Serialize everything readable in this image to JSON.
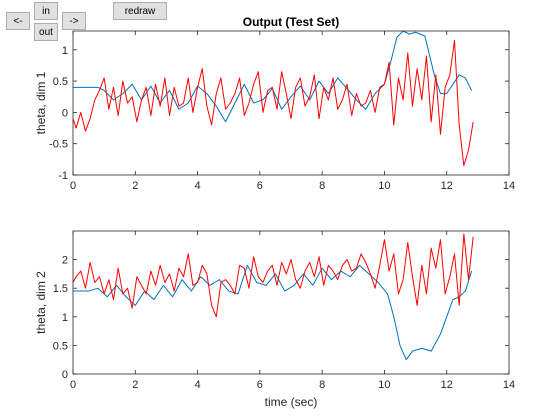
{
  "toolbar": {
    "left_label": "<-",
    "in_label": "in",
    "out_label": "out",
    "right_label": "->",
    "redraw_label": "redraw"
  },
  "colors": {
    "predicted": "#0072BD",
    "actual": "#FF0000",
    "axis": "#262626"
  },
  "chart_data": [
    {
      "type": "line",
      "title": "Output (Test Set)",
      "xlabel": "",
      "ylabel": "theta, dim 1",
      "xlim": [
        0,
        14
      ],
      "ylim": [
        -1,
        1.3
      ],
      "xticks": [
        0,
        2,
        4,
        6,
        8,
        10,
        12,
        14
      ],
      "yticks": [
        -1,
        -0.5,
        0,
        0.5,
        1
      ],
      "grid": false,
      "series": [
        {
          "color": "#0072BD",
          "x": [
            0,
            0.4,
            0.8,
            1.0,
            1.3,
            1.6,
            1.9,
            2.2,
            2.5,
            2.8,
            3.1,
            3.4,
            3.7,
            4.0,
            4.3,
            4.6,
            4.9,
            5.2,
            5.5,
            5.8,
            6.1,
            6.4,
            6.7,
            7.0,
            7.3,
            7.6,
            7.9,
            8.2,
            8.5,
            8.8,
            9.1,
            9.4,
            9.7,
            10.0,
            10.2,
            10.4,
            10.6,
            10.8,
            11.0,
            11.3,
            11.6,
            11.8,
            12.0,
            12.2,
            12.4,
            12.6,
            12.8
          ],
          "y": [
            0.4,
            0.4,
            0.4,
            0.35,
            0.2,
            0.3,
            0.45,
            0.2,
            0.42,
            0.15,
            0.35,
            0.05,
            0.15,
            0.42,
            0.3,
            0.1,
            -0.15,
            0.15,
            0.45,
            0.15,
            0.2,
            0.38,
            0.05,
            0.25,
            0.42,
            0.2,
            0.5,
            0.3,
            0.55,
            0.38,
            0.2,
            0.05,
            0.3,
            0.45,
            0.8,
            1.2,
            1.3,
            1.25,
            1.28,
            1.22,
            0.6,
            0.3,
            0.3,
            0.45,
            0.6,
            0.55,
            0.35
          ]
        },
        {
          "color": "#FF0000",
          "x": [
            0,
            0.1,
            0.25,
            0.4,
            0.55,
            0.7,
            0.85,
            1.0,
            1.15,
            1.3,
            1.45,
            1.6,
            1.75,
            1.9,
            2.05,
            2.2,
            2.35,
            2.5,
            2.65,
            2.8,
            2.95,
            3.1,
            3.25,
            3.4,
            3.55,
            3.7,
            3.85,
            4.0,
            4.15,
            4.3,
            4.45,
            4.6,
            4.75,
            4.9,
            5.05,
            5.2,
            5.35,
            5.5,
            5.65,
            5.8,
            5.95,
            6.1,
            6.25,
            6.4,
            6.55,
            6.7,
            6.85,
            7.0,
            7.15,
            7.3,
            7.45,
            7.6,
            7.75,
            7.9,
            8.05,
            8.2,
            8.35,
            8.5,
            8.65,
            8.8,
            8.95,
            9.1,
            9.25,
            9.4,
            9.55,
            9.7,
            9.85,
            10.0,
            10.15,
            10.3,
            10.45,
            10.6,
            10.75,
            10.9,
            11.05,
            11.2,
            11.35,
            11.5,
            11.65,
            11.8,
            11.95,
            12.1,
            12.25,
            12.4,
            12.55,
            12.7,
            12.85
          ],
          "y": [
            -0.1,
            -0.25,
            0.0,
            -0.3,
            -0.1,
            0.2,
            0.35,
            0.55,
            0.05,
            0.4,
            -0.05,
            0.5,
            0.15,
            0.25,
            -0.15,
            0.2,
            0.4,
            -0.05,
            0.45,
            0.1,
            0.55,
            -0.05,
            0.4,
            0.1,
            0.15,
            0.55,
            0.0,
            0.4,
            0.7,
            0.1,
            -0.2,
            0.3,
            0.55,
            0.05,
            0.15,
            0.3,
            0.55,
            -0.05,
            0.15,
            0.45,
            0.65,
            0.0,
            0.35,
            0.4,
            0.05,
            0.65,
            0.3,
            -0.1,
            0.4,
            0.55,
            0.1,
            0.25,
            0.6,
            -0.1,
            0.4,
            0.2,
            0.55,
            0.05,
            0.2,
            0.45,
            -0.05,
            0.3,
            0.1,
            0.15,
            0.35,
            0.0,
            0.4,
            0.45,
            0.8,
            -0.2,
            0.55,
            0.2,
            0.95,
            0.1,
            0.7,
            0.2,
            0.9,
            -0.15,
            0.6,
            -0.35,
            0.4,
            0.6,
            1.15,
            -0.2,
            -0.85,
            -0.6,
            -0.15
          ]
        }
      ]
    },
    {
      "type": "line",
      "title": "",
      "xlabel": "time (sec)",
      "ylabel": "theta, dim 2",
      "xlim": [
        0,
        14
      ],
      "ylim": [
        0,
        2.5
      ],
      "xticks": [
        0,
        2,
        4,
        6,
        8,
        10,
        12,
        14
      ],
      "yticks": [
        0,
        0.5,
        1,
        1.5,
        2
      ],
      "grid": false,
      "series": [
        {
          "color": "#0072BD",
          "x": [
            0,
            0.5,
            0.8,
            1.1,
            1.4,
            1.7,
            2.0,
            2.3,
            2.6,
            2.9,
            3.2,
            3.5,
            3.8,
            4.1,
            4.4,
            4.7,
            5.0,
            5.3,
            5.6,
            5.9,
            6.2,
            6.5,
            6.8,
            7.1,
            7.4,
            7.7,
            8.0,
            8.3,
            8.6,
            8.9,
            9.2,
            9.5,
            9.8,
            10.1,
            10.3,
            10.5,
            10.7,
            10.9,
            11.2,
            11.5,
            11.8,
            12.0,
            12.2,
            12.4,
            12.6,
            12.8
          ],
          "y": [
            1.45,
            1.45,
            1.5,
            1.35,
            1.55,
            1.35,
            1.2,
            1.45,
            1.3,
            1.55,
            1.35,
            1.65,
            1.45,
            1.7,
            1.55,
            1.65,
            1.45,
            1.4,
            1.9,
            1.6,
            1.55,
            1.75,
            1.45,
            1.55,
            1.75,
            1.55,
            1.85,
            1.65,
            1.8,
            1.7,
            1.9,
            1.75,
            1.6,
            1.4,
            1.0,
            0.5,
            0.25,
            0.4,
            0.45,
            0.4,
            0.7,
            1.0,
            1.3,
            1.35,
            1.45,
            1.8
          ]
        },
        {
          "color": "#FF0000",
          "x": [
            0,
            0.1,
            0.25,
            0.4,
            0.55,
            0.7,
            0.85,
            1.0,
            1.15,
            1.3,
            1.45,
            1.6,
            1.75,
            1.9,
            2.05,
            2.2,
            2.35,
            2.5,
            2.65,
            2.8,
            2.95,
            3.1,
            3.25,
            3.4,
            3.55,
            3.7,
            3.85,
            4.0,
            4.15,
            4.3,
            4.45,
            4.6,
            4.75,
            4.9,
            5.05,
            5.2,
            5.35,
            5.5,
            5.65,
            5.8,
            5.95,
            6.1,
            6.25,
            6.4,
            6.55,
            6.7,
            6.85,
            7.0,
            7.15,
            7.3,
            7.45,
            7.6,
            7.75,
            7.9,
            8.05,
            8.2,
            8.35,
            8.5,
            8.65,
            8.8,
            8.95,
            9.1,
            9.25,
            9.4,
            9.55,
            9.7,
            9.85,
            10.0,
            10.15,
            10.3,
            10.45,
            10.6,
            10.75,
            10.9,
            11.05,
            11.2,
            11.35,
            11.5,
            11.65,
            11.8,
            11.95,
            12.1,
            12.25,
            12.4,
            12.55,
            12.7,
            12.85
          ],
          "y": [
            1.6,
            1.7,
            1.8,
            1.5,
            1.95,
            1.6,
            1.7,
            1.4,
            1.65,
            1.3,
            1.85,
            1.4,
            1.5,
            1.15,
            1.7,
            1.55,
            1.4,
            1.8,
            1.55,
            1.9,
            1.6,
            1.75,
            1.45,
            1.85,
            1.7,
            2.1,
            1.55,
            1.6,
            1.9,
            1.75,
            1.2,
            1.0,
            1.6,
            1.65,
            1.55,
            1.4,
            1.9,
            1.85,
            1.5,
            2.05,
            1.7,
            1.6,
            1.8,
            1.9,
            1.55,
            1.95,
            1.75,
            2.0,
            1.65,
            1.5,
            1.8,
            1.95,
            1.7,
            2.05,
            1.55,
            1.9,
            1.8,
            1.65,
            1.9,
            2.0,
            1.8,
            1.85,
            2.1,
            1.95,
            1.75,
            1.5,
            1.9,
            2.35,
            1.8,
            2.1,
            1.4,
            1.65,
            2.3,
            1.7,
            1.2,
            1.9,
            1.4,
            2.2,
            1.85,
            2.35,
            1.4,
            1.7,
            2.1,
            1.2,
            2.45,
            1.65,
            2.4
          ]
        }
      ]
    }
  ]
}
